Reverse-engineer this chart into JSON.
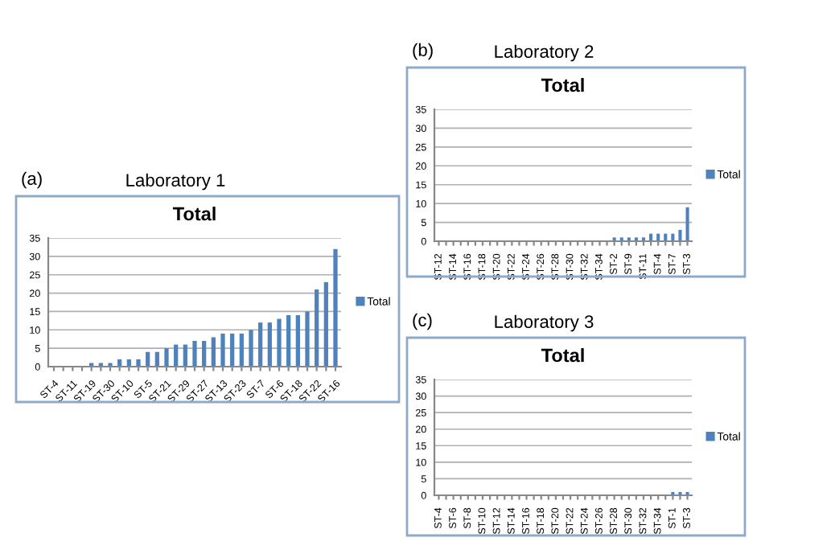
{
  "chart_data": [
    {
      "type": "bar",
      "title": "Total",
      "subtitle": "Laboratory 1",
      "annotations": [
        "(a)"
      ],
      "categories": [
        "ST-4",
        null,
        "ST-11",
        null,
        "ST-19",
        null,
        "ST-30",
        null,
        "ST-10",
        null,
        "ST-5",
        null,
        "ST-21",
        null,
        "ST-29",
        null,
        "ST-27",
        null,
        "ST-13",
        null,
        "ST-23",
        null,
        "ST-7",
        null,
        "ST-6",
        null,
        "ST-18",
        null,
        "ST-22",
        null,
        "ST-16"
      ],
      "series": [
        {
          "name": "Total",
          "color": "#4f81bd",
          "values": [
            0,
            0,
            0,
            0,
            1,
            1,
            1,
            2,
            2,
            2,
            4,
            4,
            5,
            6,
            6,
            7,
            7,
            8,
            9,
            9,
            9,
            10,
            12,
            12,
            13,
            14,
            14,
            15,
            21,
            23,
            32
          ]
        }
      ],
      "ylim": [
        0,
        35
      ],
      "yticks": [
        0,
        5,
        10,
        15,
        20,
        25,
        30,
        35
      ],
      "grid": "y",
      "legend": "right"
    },
    {
      "type": "bar",
      "title": "Total",
      "subtitle": "Laboratory 2",
      "annotations": [
        "(b)"
      ],
      "categories": [
        "ST-12",
        null,
        "ST-14",
        null,
        "ST-16",
        null,
        "ST-18",
        null,
        "ST-20",
        null,
        "ST-22",
        null,
        "ST-24",
        null,
        "ST-26",
        null,
        "ST-28",
        null,
        "ST-30",
        null,
        "ST-32",
        null,
        "ST-34",
        null,
        "ST-2",
        null,
        "ST-9",
        null,
        "ST-11",
        null,
        "ST-4",
        null,
        "ST-7",
        null,
        "ST-3"
      ],
      "series": [
        {
          "name": "Total",
          "color": "#4f81bd",
          "values": [
            0,
            0,
            0,
            0,
            0,
            0,
            0,
            0,
            0,
            0,
            0,
            0,
            0,
            0,
            0,
            0,
            0,
            0,
            0,
            0,
            0,
            0,
            0,
            0,
            1,
            1,
            1,
            1,
            1,
            2,
            2,
            2,
            2,
            3,
            9
          ]
        }
      ],
      "ylim": [
        0,
        35
      ],
      "yticks": [
        0,
        5,
        10,
        15,
        20,
        25,
        30,
        35
      ],
      "grid": "y",
      "legend": "right"
    },
    {
      "type": "bar",
      "title": "Total",
      "subtitle": "Laboratory 3",
      "annotations": [
        "(c)"
      ],
      "categories": [
        "ST-4",
        null,
        "ST-6",
        null,
        "ST-8",
        null,
        "ST-10",
        null,
        "ST-12",
        null,
        "ST-14",
        null,
        "ST-16",
        null,
        "ST-18",
        null,
        "ST-20",
        null,
        "ST-22",
        null,
        "ST-24",
        null,
        "ST-26",
        null,
        "ST-28",
        null,
        "ST-30",
        null,
        "ST-32",
        null,
        "ST-34",
        null,
        "ST-1",
        null,
        "ST-3"
      ],
      "series": [
        {
          "name": "Total",
          "color": "#4f81bd",
          "values": [
            0,
            0,
            0,
            0,
            0,
            0,
            0,
            0,
            0,
            0,
            0,
            0,
            0,
            0,
            0,
            0,
            0,
            0,
            0,
            0,
            0,
            0,
            0,
            0,
            0,
            0,
            0,
            0,
            0,
            0,
            0,
            0,
            1,
            1,
            1
          ]
        }
      ],
      "ylim": [
        0,
        35
      ],
      "yticks": [
        0,
        5,
        10,
        15,
        20,
        25,
        30,
        35
      ],
      "grid": "y",
      "legend": "right"
    }
  ]
}
